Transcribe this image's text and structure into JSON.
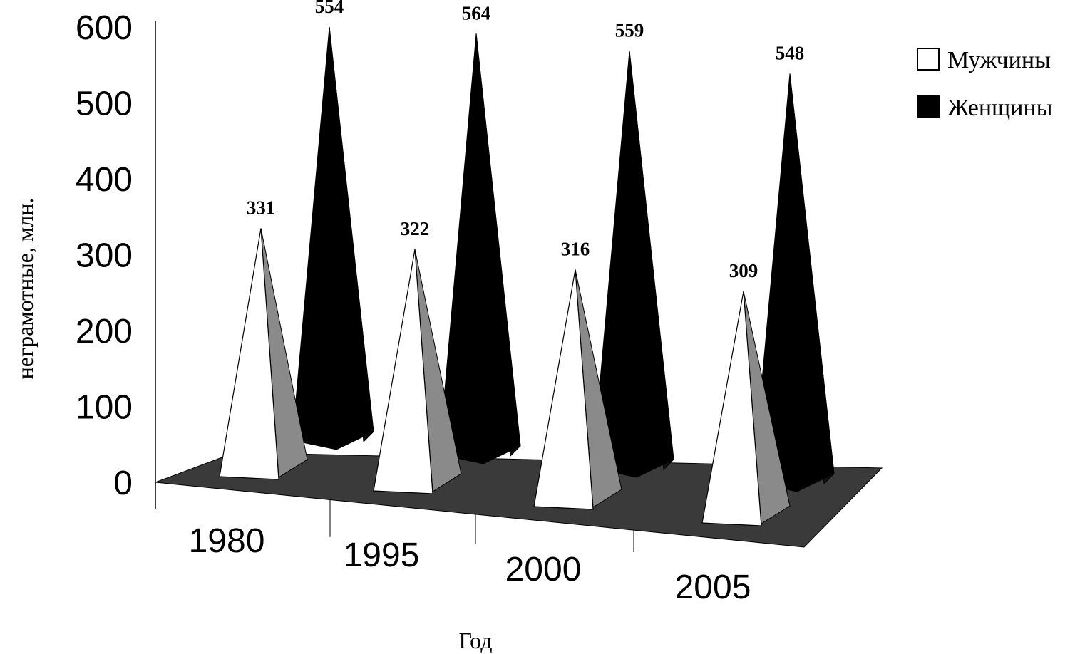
{
  "chart_data": {
    "type": "bar",
    "categories": [
      "1980",
      "1995",
      "2000",
      "2005"
    ],
    "series": [
      {
        "name": "Мужчины",
        "values": [
          331,
          322,
          316,
          309
        ],
        "color": "#ffffff"
      },
      {
        "name": "Женщины",
        "values": [
          554,
          564,
          559,
          548
        ],
        "color": "#000000"
      }
    ],
    "ylabel": "неграмотные, млн.",
    "xlabel": "Год",
    "ylim": [
      0,
      600
    ],
    "yticks": [
      "0",
      "100",
      "200",
      "300",
      "400",
      "500",
      "600"
    ],
    "legend_position": "top-right",
    "style": "3d-cone",
    "floor_color": "#3a3a3a"
  }
}
